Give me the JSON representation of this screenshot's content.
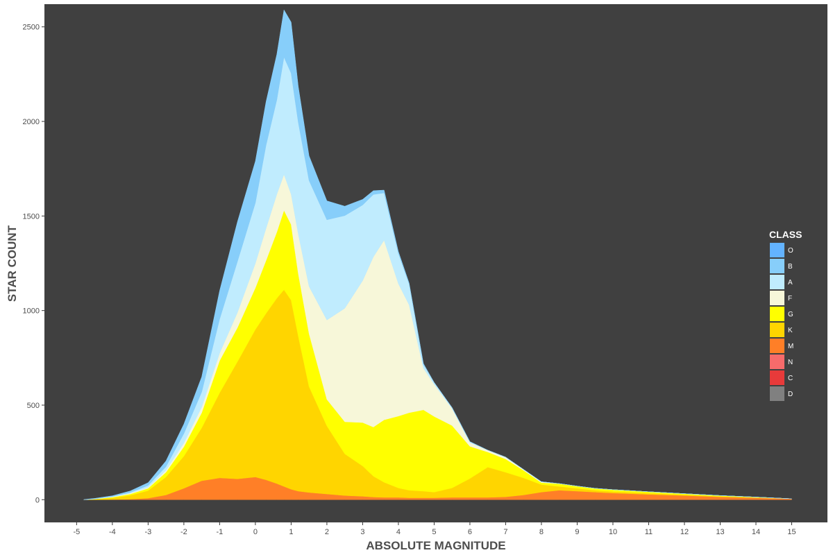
{
  "chart_data": {
    "type": "area",
    "stacked": true,
    "xlabel": "ABSOLUTE MAGNITUDE",
    "ylabel": "STAR COUNT",
    "xlim": [
      -5.9,
      16.0
    ],
    "ylim": [
      -120,
      2620
    ],
    "x_ticks": [
      "-5",
      "-4",
      "-3",
      "-2",
      "-1",
      "0",
      "1",
      "2",
      "3",
      "4",
      "5",
      "6",
      "7",
      "8",
      "9",
      "10",
      "11",
      "12",
      "13",
      "14",
      "15"
    ],
    "y_ticks": [
      "0",
      "500",
      "1000",
      "1500",
      "2000",
      "2500"
    ],
    "background": "#404040",
    "legend": {
      "title": "CLASS",
      "position": "right"
    },
    "x": [
      -4.8,
      -4.5,
      -4.0,
      -3.5,
      -3.0,
      -2.5,
      -2.0,
      -1.5,
      -1.0,
      -0.5,
      0.0,
      0.3,
      0.6,
      0.8,
      1.0,
      1.2,
      1.5,
      2.0,
      2.5,
      3.0,
      3.3,
      3.6,
      4.0,
      4.3,
      4.7,
      5.0,
      5.5,
      6.0,
      6.5,
      7.0,
      7.5,
      8.0,
      8.5,
      9.0,
      9.5,
      10.0,
      11.0,
      12.0,
      13.0,
      14.0,
      15.0
    ],
    "series": [
      {
        "name": "D",
        "color": "#808080",
        "values": [
          0,
          0,
          0,
          0,
          0,
          0,
          0,
          0,
          0,
          0,
          0,
          0,
          0,
          0,
          0,
          0,
          0,
          0,
          0,
          0,
          0,
          0,
          0,
          0,
          0,
          0,
          0,
          0,
          0,
          0,
          0,
          0,
          0,
          0,
          0,
          0,
          0,
          0,
          0,
          0,
          0
        ]
      },
      {
        "name": "C",
        "color": "#e83a3a",
        "values": [
          0,
          0,
          0,
          0,
          0,
          0,
          0,
          0,
          0,
          0,
          0,
          0,
          0,
          0,
          0,
          0,
          0,
          0,
          0,
          0,
          0,
          0,
          0,
          0,
          0,
          0,
          0,
          0,
          0,
          0,
          0,
          0,
          0,
          0,
          0,
          0,
          0,
          0,
          0,
          0,
          0
        ]
      },
      {
        "name": "N",
        "color": "#f76b6b",
        "values": [
          0,
          0,
          0,
          0,
          0,
          0,
          0,
          0,
          0,
          0,
          0,
          0,
          0,
          0,
          0,
          0,
          0,
          0,
          0,
          0,
          0,
          0,
          0,
          0,
          0,
          0,
          0,
          0,
          0,
          0,
          0,
          0,
          0,
          0,
          0,
          0,
          0,
          0,
          0,
          0,
          0
        ]
      },
      {
        "name": "M",
        "color": "#ff7f27",
        "values": [
          0,
          0,
          1,
          3,
          8,
          25,
          60,
          100,
          115,
          110,
          120,
          105,
          85,
          70,
          55,
          45,
          38,
          30,
          22,
          18,
          14,
          12,
          12,
          10,
          10,
          10,
          12,
          12,
          12,
          15,
          25,
          40,
          50,
          45,
          40,
          35,
          28,
          22,
          15,
          10,
          5
        ]
      },
      {
        "name": "K",
        "color": "#ffd500",
        "values": [
          0,
          2,
          8,
          20,
          40,
          95,
          170,
          280,
          450,
          620,
          780,
          880,
          980,
          1040,
          1000,
          820,
          560,
          360,
          220,
          160,
          110,
          80,
          50,
          40,
          35,
          30,
          50,
          100,
          160,
          130,
          90,
          40,
          20,
          15,
          10,
          8,
          6,
          4,
          3,
          2,
          0
        ]
      },
      {
        "name": "G",
        "color": "#ffff00",
        "values": [
          0,
          2,
          4,
          7,
          12,
          25,
          50,
          80,
          170,
          180,
          220,
          280,
          350,
          420,
          400,
          330,
          280,
          140,
          170,
          230,
          260,
          330,
          380,
          410,
          430,
          400,
          330,
          170,
          80,
          70,
          40,
          10,
          15,
          12,
          10,
          10,
          8,
          6,
          4,
          2,
          0
        ]
      },
      {
        "name": "F",
        "color": "#f7f7d9",
        "values": [
          0,
          0,
          2,
          4,
          5,
          10,
          20,
          30,
          40,
          80,
          130,
          170,
          200,
          190,
          160,
          210,
          250,
          420,
          600,
          750,
          900,
          950,
          700,
          570,
          220,
          170,
          90,
          20,
          10,
          10,
          5,
          5,
          0,
          0,
          0,
          0,
          0,
          0,
          0,
          0,
          0
        ]
      },
      {
        "name": "A",
        "color": "#c0ecfe",
        "values": [
          0,
          0,
          2,
          4,
          10,
          20,
          50,
          80,
          180,
          270,
          320,
          440,
          500,
          620,
          640,
          590,
          560,
          530,
          490,
          400,
          330,
          250,
          160,
          110,
          20,
          10,
          5,
          5,
          0,
          0,
          0,
          0,
          0,
          0,
          0,
          0,
          0,
          0,
          0,
          0,
          0
        ]
      },
      {
        "name": "B",
        "color": "#87cefa",
        "values": [
          1,
          3,
          4,
          8,
          15,
          30,
          50,
          80,
          150,
          210,
          220,
          230,
          240,
          250,
          270,
          190,
          130,
          100,
          50,
          30,
          20,
          15,
          10,
          5,
          5,
          0,
          0,
          0,
          0,
          0,
          0,
          0,
          0,
          0,
          0,
          0,
          0,
          0,
          0,
          0,
          0
        ]
      },
      {
        "name": "O",
        "color": "#63b3ff",
        "values": [
          0,
          0,
          0,
          0,
          0,
          0,
          0,
          0,
          0,
          0,
          0,
          0,
          0,
          0,
          0,
          0,
          0,
          0,
          0,
          0,
          0,
          0,
          0,
          0,
          0,
          0,
          0,
          0,
          0,
          0,
          0,
          0,
          0,
          0,
          0,
          0,
          0,
          0,
          0,
          0,
          0
        ]
      }
    ]
  }
}
